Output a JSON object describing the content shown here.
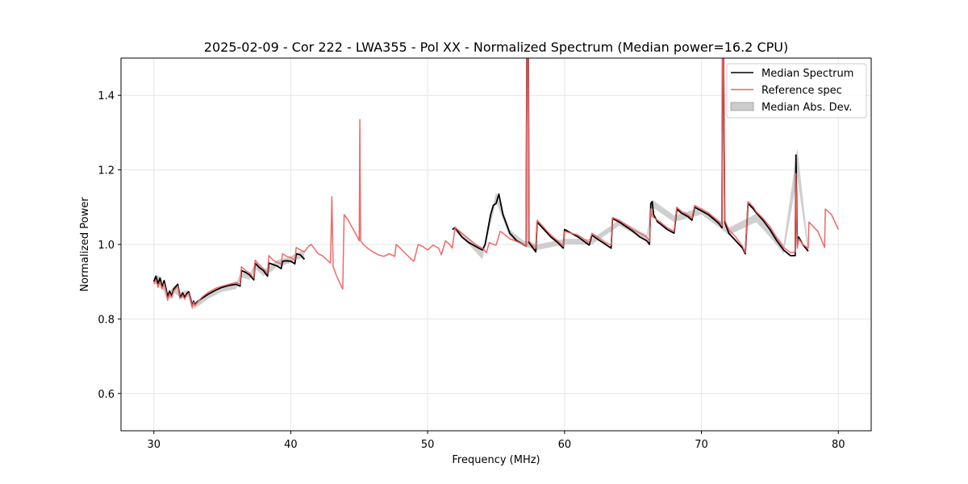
{
  "chart_data": {
    "type": "line",
    "title": "2025-02-09 - Cor 222 - LWA355 - Pol XX - Normalized Spectrum (Median power=16.2 CPU)",
    "xlabel": "Frequency (MHz)",
    "ylabel": "Normalized Power",
    "xlim": [
      27.6,
      82.4
    ],
    "ylim": [
      0.5,
      1.5
    ],
    "xticks": [
      30,
      40,
      50,
      60,
      70,
      80
    ],
    "yticks": [
      0.6,
      0.8,
      1.0,
      1.2,
      1.4
    ],
    "xtick_labels": [
      "30",
      "40",
      "50",
      "60",
      "70",
      "80"
    ],
    "ytick_labels": [
      "0.6",
      "0.8",
      "1.0",
      "1.2",
      "1.4"
    ],
    "grid": true,
    "legend_position": "top-right",
    "colors": {
      "median": "#000000",
      "reference": "#f06060",
      "mad": "#bfbfbf"
    },
    "series": [
      {
        "name": "Median Abs. Dev.",
        "kind": "band",
        "segments": [
          {
            "x": [
              30.0,
              30.3,
              30.6,
              31.0,
              31.5,
              32.0,
              32.5,
              32.8,
              33.4,
              34.0,
              35.0,
              36.0,
              36.4,
              37.0,
              37.4,
              38.0,
              38.5,
              39.0,
              39.5,
              40.0,
              40.5,
              41.0
            ],
            "lower": [
              0.892,
              0.895,
              0.885,
              0.85,
              0.87,
              0.855,
              0.86,
              0.825,
              0.838,
              0.855,
              0.873,
              0.88,
              0.912,
              0.905,
              0.935,
              0.915,
              0.925,
              0.94,
              0.945,
              0.95,
              0.96,
              0.965
            ],
            "upper": [
              0.912,
              0.918,
              0.905,
              0.868,
              0.89,
              0.872,
              0.878,
              0.842,
              0.853,
              0.87,
              0.888,
              0.895,
              0.928,
              0.92,
              0.952,
              0.932,
              0.942,
              0.958,
              0.962,
              0.968,
              0.978,
              0.985
            ]
          },
          {
            "x": [
              52.0,
              53.0,
              54.0,
              55.0,
              56.0,
              57.0,
              58.0,
              60.0,
              62.0,
              64.0,
              66.0,
              66.4,
              68.0,
              70.0,
              71.5,
              72.0,
              74.0,
              75.0,
              76.0,
              77.0,
              77.8
            ],
            "lower": [
              1.035,
              1.0,
              0.96,
              1.115,
              1.02,
              0.995,
              0.985,
              1.0,
              1.0,
              1.05,
              1.01,
              1.1,
              1.06,
              1.08,
              1.04,
              1.025,
              1.06,
              1.02,
              0.975,
              1.18,
              0.975
            ],
            "upper": [
              1.05,
              1.015,
              0.98,
              1.14,
              1.04,
              1.01,
              1.0,
              1.015,
              1.015,
              1.066,
              1.026,
              1.12,
              1.078,
              1.098,
              1.06,
              1.045,
              1.082,
              1.045,
              1.0,
              1.26,
              0.995
            ]
          }
        ]
      },
      {
        "name": "Median Spectrum",
        "kind": "line",
        "segments": [
          {
            "x": [
              30.0,
              30.15,
              30.3,
              30.45,
              30.6,
              30.75,
              30.9,
              31.0,
              31.15,
              31.3,
              31.45,
              31.6,
              31.75,
              31.9,
              32.0,
              32.1,
              32.25,
              32.4,
              32.55,
              32.7,
              32.8,
              32.9,
              33.0,
              33.2,
              33.5,
              34.0,
              34.5,
              35.0,
              35.5,
              36.0,
              36.3,
              36.4,
              36.7,
              37.0,
              37.3,
              37.4,
              37.7,
              38.0,
              38.3,
              38.4,
              38.7,
              39.0,
              39.3,
              39.4,
              39.7,
              40.0,
              40.3,
              40.4,
              40.7,
              41.0
            ],
            "y": [
              0.9,
              0.915,
              0.895,
              0.91,
              0.885,
              0.903,
              0.88,
              0.86,
              0.875,
              0.862,
              0.88,
              0.887,
              0.893,
              0.86,
              0.862,
              0.87,
              0.858,
              0.868,
              0.873,
              0.852,
              0.835,
              0.848,
              0.838,
              0.847,
              0.855,
              0.867,
              0.877,
              0.885,
              0.89,
              0.893,
              0.888,
              0.93,
              0.925,
              0.918,
              0.905,
              0.95,
              0.938,
              0.93,
              0.915,
              0.95,
              0.946,
              0.942,
              0.935,
              0.955,
              0.956,
              0.955,
              0.948,
              0.975,
              0.972,
              0.96
            ]
          },
          {
            "x": [
              51.8,
              52.0,
              52.5,
              53.0,
              53.5,
              54.0,
              54.2,
              54.4,
              54.6,
              54.8,
              55.0,
              55.2,
              55.5,
              56.0,
              56.5,
              57.0,
              57.2,
              57.25,
              57.3,
              57.35,
              57.4,
              57.6,
              57.9,
              58.0,
              58.5,
              59.0,
              59.5,
              59.9,
              60.0,
              61.0,
              61.8,
              62.0,
              62.5,
              63.0,
              63.4,
              63.5,
              64.0,
              65.0,
              65.5,
              66.0,
              66.2,
              66.3,
              66.4,
              66.5,
              66.8,
              67.0,
              67.5,
              68.0,
              68.2,
              68.5,
              69.0,
              69.3,
              69.5,
              70.0,
              70.5,
              71.0,
              71.3,
              71.5,
              71.55,
              71.6,
              71.7,
              72.0,
              72.5,
              73.0,
              73.2,
              73.4,
              73.8,
              74.0,
              74.5,
              75.0,
              75.5,
              76.0,
              76.5,
              76.85,
              76.9,
              77.0,
              77.1,
              77.4,
              77.8
            ],
            "y": [
              1.04,
              1.045,
              1.02,
              1.005,
              0.995,
              0.985,
              1.0,
              1.04,
              1.08,
              1.105,
              1.11,
              1.135,
              1.08,
              1.03,
              1.01,
              1.0,
              0.995,
              1.6,
              1.6,
              1.6,
              1.005,
              0.995,
              0.98,
              1.06,
              1.04,
              1.02,
              1.005,
              0.99,
              1.04,
              1.02,
              0.998,
              1.025,
              1.012,
              1.0,
              0.99,
              1.07,
              1.06,
              1.035,
              1.02,
              1.01,
              1.0,
              1.11,
              1.115,
              1.08,
              1.06,
              1.055,
              1.04,
              1.03,
              1.095,
              1.085,
              1.075,
              1.065,
              1.1,
              1.09,
              1.08,
              1.065,
              1.055,
              1.045,
              1.6,
              1.6,
              1.06,
              1.03,
              1.01,
              0.99,
              0.975,
              1.11,
              1.095,
              1.085,
              1.065,
              1.04,
              1.01,
              0.985,
              0.97,
              0.97,
              1.24,
              1.0,
              1.02,
              1.0,
              0.982
            ]
          }
        ]
      },
      {
        "name": "Reference spec",
        "kind": "line",
        "segments": [
          {
            "x": [
              30.0,
              30.15,
              30.3,
              30.45,
              30.6,
              30.75,
              30.9,
              31.0,
              31.15,
              31.3,
              31.45,
              31.6,
              31.75,
              31.9,
              32.0,
              32.1,
              32.25,
              32.4,
              32.55,
              32.7,
              32.8,
              32.9,
              33.0,
              33.2,
              33.5,
              34.0,
              34.5,
              35.0,
              35.5,
              36.0,
              36.3,
              36.4,
              36.7,
              37.0,
              37.3,
              37.4,
              37.7,
              38.0,
              38.3,
              38.4,
              38.7,
              39.0,
              39.3,
              39.4,
              39.7,
              40.0,
              40.3,
              40.4,
              40.7,
              41.0,
              41.3,
              41.5,
              41.8,
              42.0,
              42.3,
              42.6,
              42.9,
              43.0,
              43.1,
              43.3,
              43.6,
              43.8,
              43.9,
              44.2,
              44.5,
              44.8,
              45.0,
              45.05,
              45.1,
              45.3,
              45.6,
              46.0,
              46.4,
              46.8,
              47.2,
              47.6,
              47.7,
              48.0,
              48.4,
              48.8,
              49.0,
              49.3,
              49.6,
              50.0,
              50.4,
              50.8,
              51.0,
              51.3,
              51.6,
              51.8,
              52.0,
              52.5,
              53.0,
              53.5,
              54.0,
              54.3,
              54.5,
              54.8,
              55.0,
              55.3,
              55.5,
              56.0,
              56.5,
              57.0,
              57.2,
              57.25,
              57.3,
              57.35,
              57.4,
              57.6,
              57.9,
              58.0,
              58.5,
              59.0,
              59.5,
              59.9,
              60.0,
              61.0,
              61.8,
              62.0,
              62.5,
              63.0,
              63.4,
              63.5,
              64.0,
              65.0,
              65.5,
              66.0,
              66.2,
              66.3,
              66.4,
              66.8,
              67.0,
              67.5,
              68.0,
              68.2,
              68.5,
              69.0,
              69.3,
              69.5,
              70.0,
              70.5,
              71.0,
              71.3,
              71.5,
              71.55,
              71.6,
              71.7,
              72.0,
              72.5,
              73.0,
              73.2,
              73.4,
              73.8,
              74.0,
              74.5,
              75.0,
              75.5,
              76.0,
              76.5,
              76.85,
              76.9,
              77.0,
              77.1,
              77.4,
              77.8,
              77.85,
              78.5,
              79.0,
              79.05,
              79.5,
              80.0
            ],
            "y": [
              0.895,
              0.905,
              0.885,
              0.9,
              0.88,
              0.895,
              0.872,
              0.85,
              0.868,
              0.857,
              0.875,
              0.882,
              0.888,
              0.855,
              0.857,
              0.864,
              0.853,
              0.864,
              0.869,
              0.848,
              0.832,
              0.845,
              0.836,
              0.845,
              0.858,
              0.872,
              0.882,
              0.888,
              0.893,
              0.898,
              0.893,
              0.94,
              0.93,
              0.923,
              0.91,
              0.958,
              0.945,
              0.935,
              0.922,
              0.97,
              0.958,
              0.952,
              0.948,
              0.975,
              0.968,
              0.965,
              0.958,
              0.992,
              0.985,
              0.98,
              0.995,
              1.0,
              0.985,
              0.975,
              0.97,
              0.96,
              0.95,
              1.128,
              0.94,
              0.92,
              0.895,
              0.88,
              1.08,
              1.065,
              1.045,
              1.025,
              1.01,
              1.335,
              1.01,
              1.0,
              0.99,
              0.98,
              0.972,
              0.968,
              0.975,
              0.968,
              1.0,
              0.99,
              0.975,
              0.96,
              0.955,
              1.0,
              0.995,
              0.985,
              0.998,
              0.99,
              0.972,
              1.01,
              1.0,
              0.99,
              1.045,
              1.03,
              1.015,
              1.0,
              0.99,
              0.978,
              1.005,
              1.0,
              0.998,
              1.035,
              1.03,
              1.015,
              1.008,
              1.0,
              0.995,
              1.6,
              1.6,
              1.6,
              1.01,
              1.0,
              0.99,
              1.065,
              1.045,
              1.025,
              1.01,
              0.995,
              1.035,
              1.025,
              1.005,
              1.03,
              1.018,
              1.005,
              0.998,
              1.072,
              1.065,
              1.04,
              1.03,
              1.02,
              1.008,
              1.095,
              1.075,
              1.065,
              1.06,
              1.045,
              1.035,
              1.1,
              1.09,
              1.08,
              1.07,
              1.105,
              1.095,
              1.085,
              1.07,
              1.06,
              1.05,
              1.6,
              1.6,
              1.065,
              1.04,
              1.02,
              0.995,
              0.978,
              1.115,
              1.1,
              1.088,
              1.07,
              1.048,
              1.018,
              0.992,
              0.978,
              0.98,
              1.19,
              0.99,
              1.015,
              1.0,
              0.99,
              1.06,
              1.035,
              0.992,
              1.095,
              1.08,
              1.04
            ]
          }
        ]
      }
    ],
    "legend": [
      {
        "label": "Median Spectrum",
        "kind": "line",
        "color": "#000000"
      },
      {
        "label": "Reference spec",
        "kind": "line",
        "color": "#f06060"
      },
      {
        "label": "Median Abs. Dev.",
        "kind": "patch",
        "color": "#bfbfbf"
      }
    ]
  }
}
